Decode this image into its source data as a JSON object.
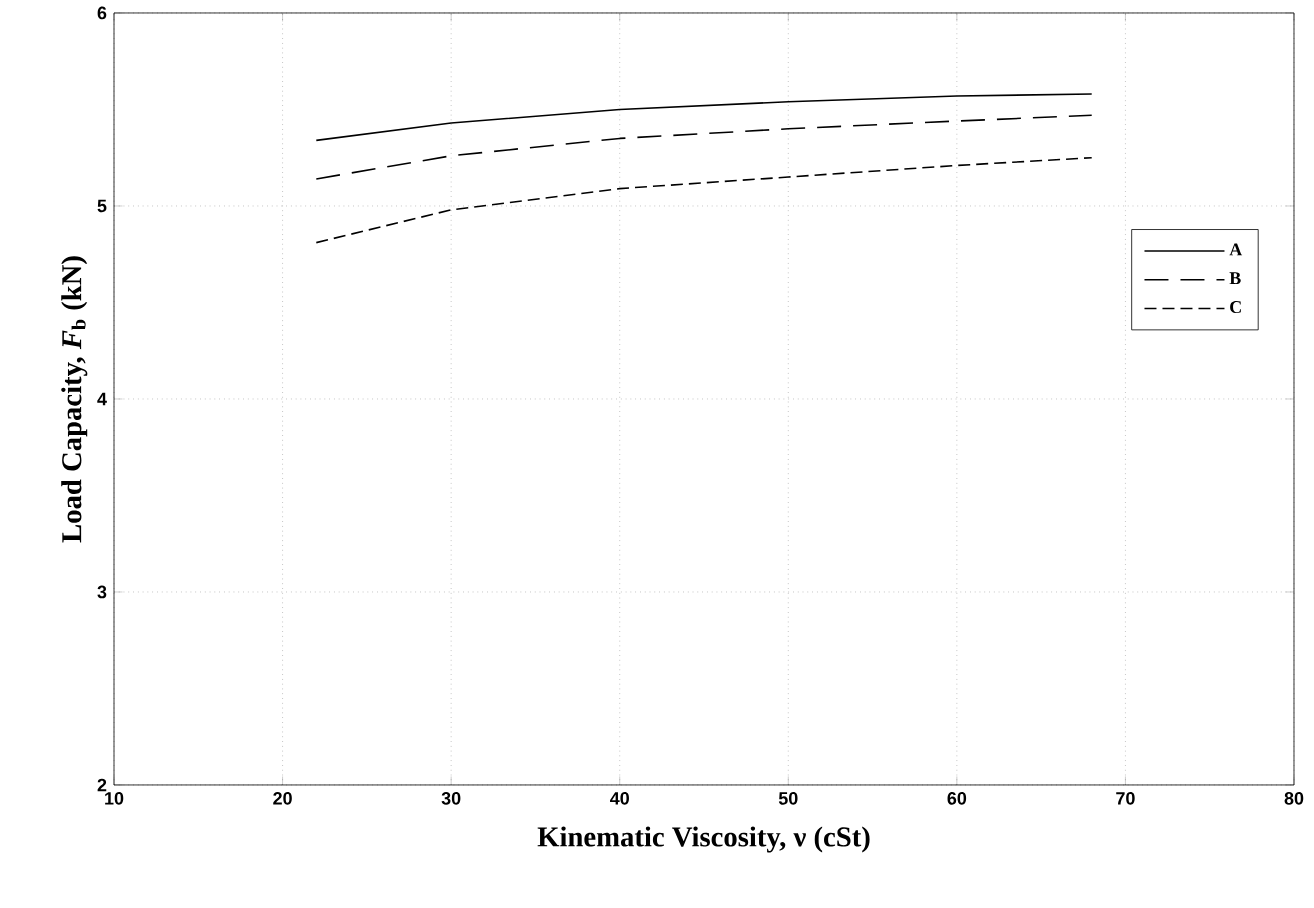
{
  "chart_data": {
    "type": "line",
    "xlabel": "Kinematic Viscosity, ν (cSt)",
    "ylabel": "Load Capacity,  *F*$_{b}$ (kN)",
    "x": [
      22,
      30,
      40,
      50,
      60,
      68
    ],
    "series": [
      {
        "name": "A",
        "color": "#000000",
        "line_style": "solid",
        "values": [
          5.34,
          5.43,
          5.5,
          5.54,
          5.57,
          5.58
        ]
      },
      {
        "name": "B",
        "color": "#000000",
        "line_style": "dashed",
        "values": [
          5.14,
          5.26,
          5.35,
          5.4,
          5.44,
          5.47
        ]
      },
      {
        "name": "C",
        "color": "#000000",
        "line_style": "dashed",
        "values": [
          4.81,
          4.98,
          5.09,
          5.15,
          5.21,
          5.25
        ]
      }
    ],
    "xlim": [
      10,
      80
    ],
    "ylim": [
      2,
      6
    ],
    "xticks": [
      10,
      20,
      30,
      40,
      50,
      60,
      70,
      80
    ],
    "yticks": [
      2,
      3,
      4,
      5,
      6
    ],
    "grid": true,
    "legend": "right",
    "marker": "none"
  }
}
